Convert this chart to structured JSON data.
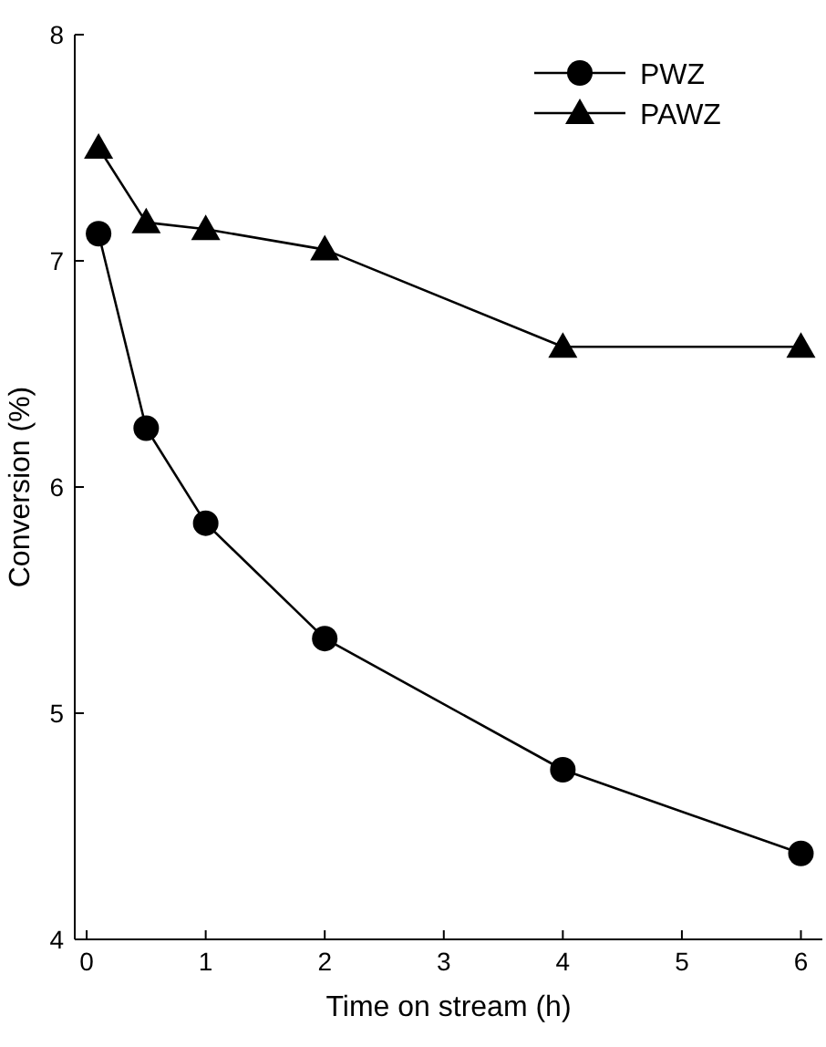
{
  "chart_data": {
    "type": "line",
    "xlabel": "Time on stream (h)",
    "ylabel": "Conversion (%)",
    "x": [
      0.1,
      0.5,
      1,
      2,
      4,
      6
    ],
    "series": [
      {
        "name": "PWZ",
        "color": "#000000",
        "marker": "circle",
        "values": [
          7.12,
          6.26,
          5.84,
          5.33,
          4.75,
          4.38
        ]
      },
      {
        "name": "PAWZ",
        "color": "#000000",
        "marker": "triangle",
        "values": [
          7.5,
          7.17,
          7.14,
          7.05,
          6.62,
          6.62
        ]
      }
    ],
    "xlim": [
      -0.1,
      6.18
    ],
    "ylim": [
      4,
      8
    ],
    "xticks": [
      0,
      1,
      2,
      3,
      4,
      5,
      6
    ],
    "yticks": [
      4,
      5,
      6,
      7,
      8
    ],
    "legend": "top right",
    "line_style": "solid",
    "grid": false
  }
}
